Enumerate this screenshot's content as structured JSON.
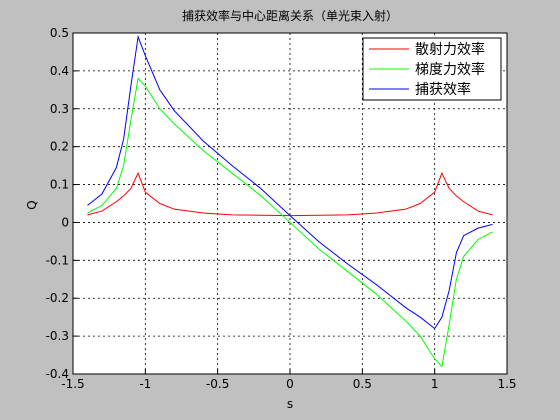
{
  "chart_data": {
    "type": "line",
    "title": "捕获效率与中心距离关系（单光束入射）",
    "xlabel": "s",
    "ylabel": "Q",
    "x": [
      -1.4,
      -1.3,
      -1.2,
      -1.15,
      -1.1,
      -1.05,
      -1.0,
      -0.9,
      -0.8,
      -0.6,
      -0.4,
      -0.2,
      0,
      0.2,
      0.4,
      0.6,
      0.8,
      0.9,
      1.0,
      1.05,
      1.1,
      1.15,
      1.2,
      1.3,
      1.4
    ],
    "series": [
      {
        "name": "散射力效率",
        "color": "#ff0000",
        "values": [
          0.02,
          0.03,
          0.055,
          0.07,
          0.09,
          0.13,
          0.08,
          0.05,
          0.035,
          0.025,
          0.02,
          0.019,
          0.018,
          0.019,
          0.02,
          0.025,
          0.035,
          0.05,
          0.08,
          0.13,
          0.09,
          0.07,
          0.055,
          0.03,
          0.02
        ]
      },
      {
        "name": "梯度力效率",
        "color": "#00ff00",
        "values": [
          0.025,
          0.045,
          0.09,
          0.15,
          0.27,
          0.38,
          0.36,
          0.3,
          0.26,
          0.19,
          0.13,
          0.07,
          0,
          -0.07,
          -0.13,
          -0.19,
          -0.26,
          -0.3,
          -0.36,
          -0.38,
          -0.27,
          -0.15,
          -0.09,
          -0.045,
          -0.025
        ]
      },
      {
        "name": "捕获效率",
        "color": "#0000ff",
        "values": [
          0.045,
          0.075,
          0.145,
          0.22,
          0.36,
          0.49,
          0.44,
          0.35,
          0.295,
          0.215,
          0.15,
          0.089,
          0.018,
          -0.051,
          -0.11,
          -0.165,
          -0.225,
          -0.25,
          -0.28,
          -0.25,
          -0.18,
          -0.08,
          -0.035,
          -0.015,
          -0.005
        ]
      }
    ],
    "xlim": [
      -1.5,
      1.5
    ],
    "xticks": [
      -1.5,
      -1,
      -0.5,
      0,
      0.5,
      1,
      1.5
    ],
    "ylim": [
      -0.4,
      0.5
    ],
    "yticks": [
      -0.4,
      -0.3,
      -0.2,
      -0.1,
      0,
      0.1,
      0.2,
      0.3,
      0.4,
      0.5
    ],
    "grid": true,
    "legend": "upper right"
  }
}
